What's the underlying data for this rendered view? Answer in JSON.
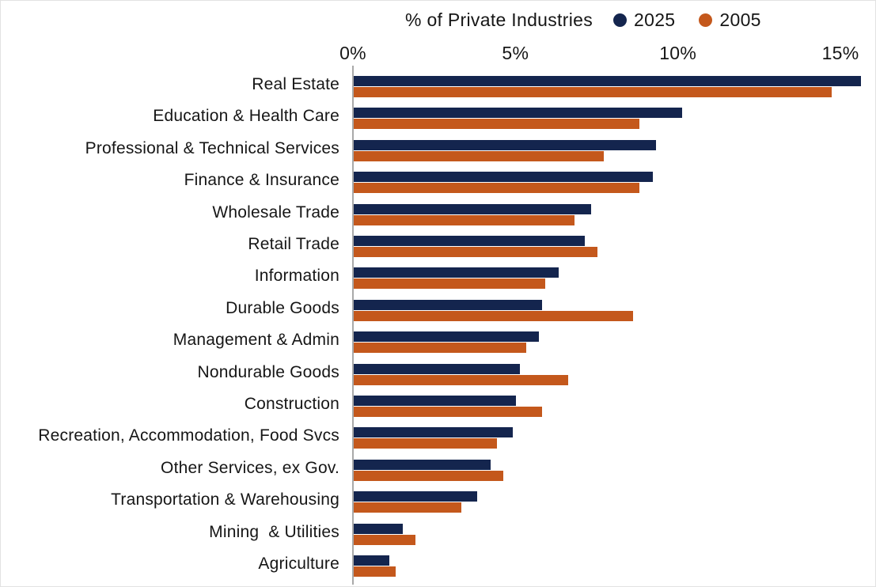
{
  "chart_data": {
    "type": "bar",
    "orientation": "horizontal",
    "title": "% of Private Industries",
    "categories": [
      "Real Estate",
      "Education & Health Care",
      "Professional & Technical Services",
      "Finance & Insurance",
      "Wholesale Trade",
      "Retail Trade",
      "Information",
      "Durable Goods",
      "Management & Admin",
      "Nondurable Goods",
      "Construction",
      "Recreation, Accommodation, Food Svcs",
      "Other Services, ex Gov.",
      "Transportation & Warehousing",
      "Mining  & Utilities",
      "Agriculture"
    ],
    "series": [
      {
        "name": "2025",
        "color": "#14254e",
        "values": [
          15.6,
          10.1,
          9.3,
          9.2,
          7.3,
          7.1,
          6.3,
          5.8,
          5.7,
          5.1,
          5.0,
          4.9,
          4.2,
          3.8,
          1.5,
          1.1
        ]
      },
      {
        "name": "2005",
        "color": "#c4581c",
        "values": [
          14.7,
          8.8,
          7.7,
          8.8,
          6.8,
          7.5,
          5.9,
          8.6,
          5.3,
          6.6,
          5.8,
          4.4,
          4.6,
          3.3,
          1.9,
          1.3
        ]
      }
    ],
    "x_ticks": [
      "0%",
      "5%",
      "10%",
      "15%"
    ],
    "x_tick_values": [
      0,
      5,
      10,
      15
    ],
    "xlim": [
      0,
      16.1
    ],
    "grid": false,
    "legend_position": "top",
    "axis_line_color": "#a9a9a9",
    "background_color": "#ffffff"
  }
}
